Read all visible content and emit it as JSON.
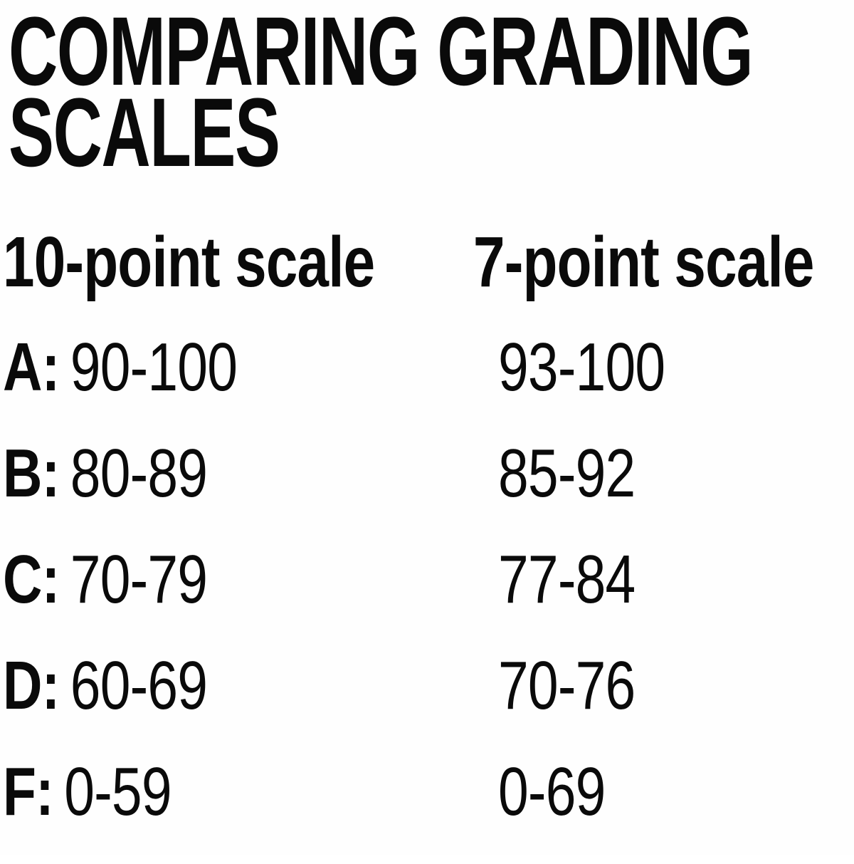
{
  "title": "COMPARING GRADING SCALES",
  "table": {
    "columns": [
      "10-point scale",
      "7-point scale"
    ],
    "rows": [
      {
        "grade": "A:",
        "ten_point": "90-100",
        "seven_point": "93-100"
      },
      {
        "grade": "B:",
        "ten_point": "80-89",
        "seven_point": "85-92"
      },
      {
        "grade": "C:",
        "ten_point": "70-79",
        "seven_point": "77-84"
      },
      {
        "grade": "D:",
        "ten_point": "60-69",
        "seven_point": "70-76"
      },
      {
        "grade": "F:",
        "ten_point": "0-59",
        "seven_point": "0-69"
      }
    ]
  },
  "chart_data": {
    "type": "table",
    "title": "COMPARING GRADING SCALES",
    "columns": [
      "10-point scale",
      "7-point scale"
    ],
    "row_labels": [
      "A",
      "B",
      "C",
      "D",
      "F"
    ],
    "rows": [
      [
        "A: 90-100",
        "93-100"
      ],
      [
        "B: 80-89",
        "85-92"
      ],
      [
        "C: 70-79",
        "77-84"
      ],
      [
        "D: 60-69",
        "70-76"
      ],
      [
        "F: 0-59",
        "0-69"
      ]
    ],
    "series": [
      {
        "name": "10-point scale",
        "values": [
          "90-100",
          "80-89",
          "70-79",
          "60-69",
          "0-59"
        ]
      },
      {
        "name": "7-point scale",
        "values": [
          "93-100",
          "85-92",
          "77-84",
          "70-76",
          "0-69"
        ]
      }
    ],
    "legend_position": "none",
    "grid": false
  },
  "colors": {
    "text": "#0a0a0a",
    "background": "#ffffff"
  }
}
